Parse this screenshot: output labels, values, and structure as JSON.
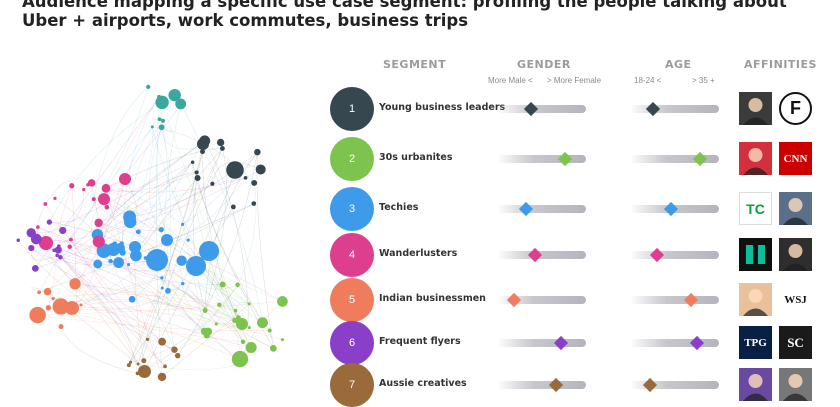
{
  "title": {
    "line1": "Audience mapping a specific use case segment: profiling the people talking about",
    "line2": "Uber + airports, work commutes, business trips"
  },
  "headers": {
    "segment": "SEGMENT",
    "gender": "GENDER",
    "age": "AGE",
    "affinities": "AFFINITIES",
    "gender_left": "More Male <",
    "gender_right": "> More Female",
    "age_left": "18-24 <",
    "age_right": "> 35 +"
  },
  "segments": [
    {
      "num": "1",
      "name": "Young business leaders",
      "color": "#37474f",
      "gender": 0.38,
      "age": 0.25,
      "aff1": {
        "icon": "portrait-icon",
        "bg": "#3b3b3b",
        "text": ""
      },
      "aff2": {
        "icon": "f-logo-icon",
        "bg": "#ffffff",
        "text": "F"
      }
    },
    {
      "num": "2",
      "name": "30s urbanites",
      "color": "#7cc44e",
      "gender": 0.76,
      "age": 0.78,
      "aff1": {
        "icon": "photo-icon",
        "bg": "#d32f3f",
        "text": ""
      },
      "aff2": {
        "icon": "cnn-logo-icon",
        "bg": "#cc0000",
        "text": "CNN"
      }
    },
    {
      "num": "3",
      "name": "Techies",
      "color": "#3e9be9",
      "gender": 0.32,
      "age": 0.45,
      "aff1": {
        "icon": "techcrunch-logo-icon",
        "bg": "#ffffff",
        "text": "TC"
      },
      "aff2": {
        "icon": "portrait-icon",
        "bg": "#5a6f8a",
        "text": ""
      }
    },
    {
      "num": "4",
      "name": "Wanderlusters",
      "color": "#dd3f8e",
      "gender": 0.42,
      "age": 0.3,
      "aff1": {
        "icon": "huffpost-logo-icon",
        "bg": "#111111",
        "text": ""
      },
      "aff2": {
        "icon": "portrait-icon",
        "bg": "#2e2e2e",
        "text": ""
      }
    },
    {
      "num": "5",
      "name": "Indian businessmen",
      "color": "#f07c5e",
      "gender": 0.18,
      "age": 0.68,
      "aff1": {
        "icon": "portrait-icon",
        "bg": "#e8c09a",
        "text": ""
      },
      "aff2": {
        "icon": "wsj-logo-icon",
        "bg": "#ffffff",
        "text": "WSJ"
      }
    },
    {
      "num": "6",
      "name": "Frequent flyers",
      "color": "#8a3fc8",
      "gender": 0.72,
      "age": 0.75,
      "aff1": {
        "icon": "tpg-logo-icon",
        "bg": "#0a1f44",
        "text": "TPG"
      },
      "aff2": {
        "icon": "sportscenter-logo-icon",
        "bg": "#1a1a1a",
        "text": "SC"
      }
    },
    {
      "num": "7",
      "name": "Aussie creatives",
      "color": "#9a6a3a",
      "gender": 0.66,
      "age": 0.22,
      "aff1": {
        "icon": "photo-icon",
        "bg": "#6a4aa0",
        "text": ""
      },
      "aff2": {
        "icon": "portrait-icon",
        "bg": "#777777",
        "text": ""
      }
    }
  ]
}
